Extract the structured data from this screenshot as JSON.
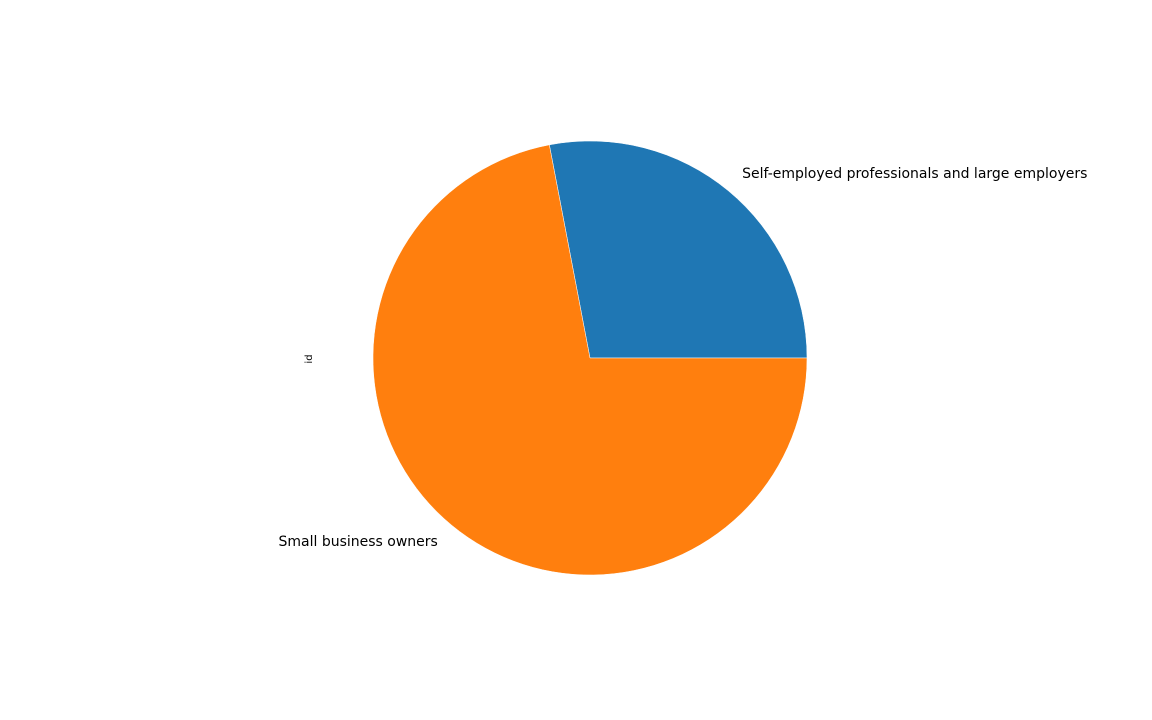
{
  "chart_data": {
    "type": "pie",
    "ylabel": "id",
    "labels": [
      "Self-employed professionals and large employers",
      "Small business owners"
    ],
    "values": [
      28,
      72
    ],
    "colors": [
      "#1f77b4",
      "#ff7f0e"
    ],
    "start_angle": 0,
    "direction": "counterclockwise"
  }
}
